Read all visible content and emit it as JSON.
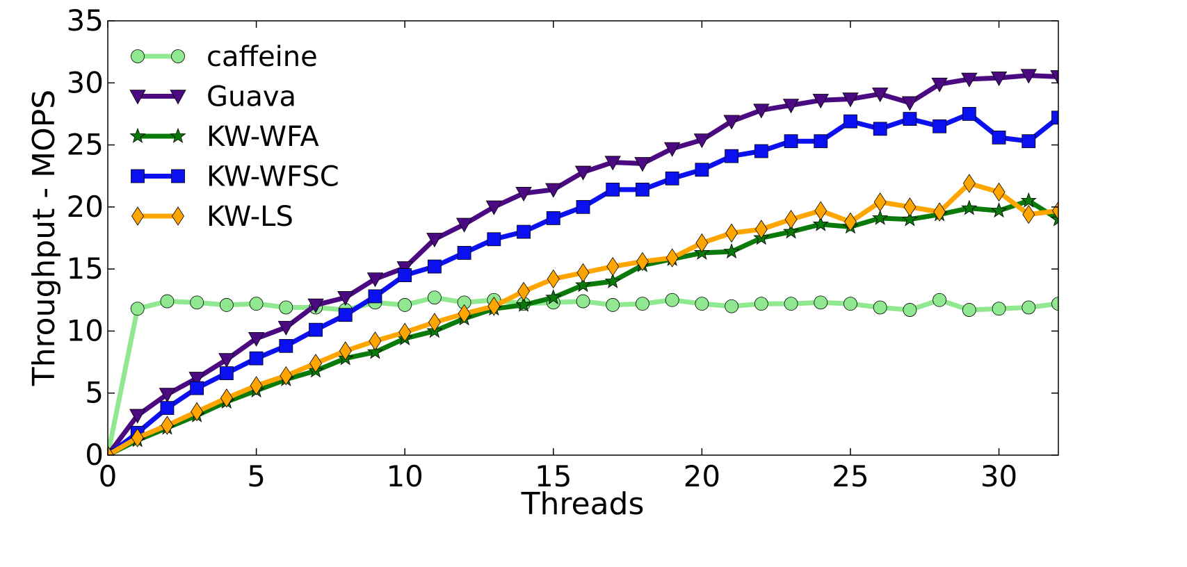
{
  "chart_data": {
    "type": "line",
    "title": "",
    "xlabel": "Threads",
    "ylabel": "Throughput - MOPS",
    "xlim": [
      0,
      32
    ],
    "ylim": [
      0,
      35
    ],
    "xticks": [
      0,
      5,
      10,
      15,
      20,
      25,
      30
    ],
    "yticks": [
      0,
      5,
      10,
      15,
      20,
      25,
      30,
      35
    ],
    "grid": false,
    "legend_position": "top-left",
    "x": [
      0,
      1,
      2,
      3,
      4,
      5,
      6,
      7,
      8,
      9,
      10,
      11,
      12,
      13,
      14,
      15,
      16,
      17,
      18,
      19,
      20,
      21,
      22,
      23,
      24,
      25,
      26,
      27,
      28,
      29,
      30,
      31,
      32
    ],
    "series": [
      {
        "name": "caffeine",
        "color": "#90e890",
        "marker": "circle",
        "values": [
          0,
          11.8,
          12.4,
          12.3,
          12.1,
          12.2,
          11.9,
          11.9,
          11.7,
          12.3,
          12.1,
          12.7,
          12.3,
          12.5,
          12.2,
          12.3,
          12.4,
          12.1,
          12.2,
          12.5,
          12.2,
          12.0,
          12.2,
          12.2,
          12.3,
          12.2,
          11.9,
          11.7,
          12.5,
          11.7,
          11.8,
          11.9,
          12.2
        ]
      },
      {
        "name": "Guava",
        "color": "#4b0a82",
        "marker": "triangle-down",
        "values": [
          0,
          3.2,
          4.9,
          6.2,
          7.7,
          9.4,
          10.3,
          12.1,
          12.7,
          14.2,
          15.1,
          17.4,
          18.6,
          20.0,
          21.1,
          21.4,
          22.8,
          23.6,
          23.5,
          24.7,
          25.4,
          26.9,
          27.8,
          28.2,
          28.6,
          28.7,
          29.1,
          28.4,
          29.9,
          30.3,
          30.4,
          30.6,
          30.5
        ]
      },
      {
        "name": "KW-WFA",
        "color": "#0a7a0a",
        "marker": "star",
        "values": [
          0,
          1.2,
          2.2,
          3.2,
          4.3,
          5.2,
          6.1,
          6.8,
          7.8,
          8.3,
          9.4,
          10.0,
          11.0,
          11.8,
          12.1,
          12.7,
          13.7,
          14.0,
          15.3,
          15.8,
          16.3,
          16.4,
          17.5,
          18.0,
          18.6,
          18.4,
          19.1,
          19.0,
          19.4,
          19.9,
          19.7,
          20.5,
          19.0
        ]
      },
      {
        "name": "KW-WFSC",
        "color": "#0a10f0",
        "marker": "square",
        "values": [
          0,
          1.8,
          3.8,
          5.4,
          6.6,
          7.8,
          8.8,
          10.1,
          11.3,
          12.8,
          14.5,
          15.2,
          16.3,
          17.4,
          18.0,
          19.1,
          20.0,
          21.4,
          21.4,
          22.3,
          23.0,
          24.1,
          24.5,
          25.3,
          25.3,
          26.9,
          26.3,
          27.1,
          26.5,
          27.5,
          25.6,
          25.3,
          27.2
        ]
      },
      {
        "name": "KW-LS",
        "color": "#ffa500",
        "marker": "diamond",
        "values": [
          0,
          1.4,
          2.4,
          3.5,
          4.6,
          5.6,
          6.4,
          7.4,
          8.4,
          9.2,
          9.9,
          10.7,
          11.4,
          12.0,
          13.2,
          14.2,
          14.7,
          15.2,
          15.6,
          15.9,
          17.1,
          17.9,
          18.2,
          19.0,
          19.7,
          18.8,
          20.4,
          20.0,
          19.6,
          21.9,
          21.2,
          19.4,
          19.7
        ]
      }
    ]
  }
}
